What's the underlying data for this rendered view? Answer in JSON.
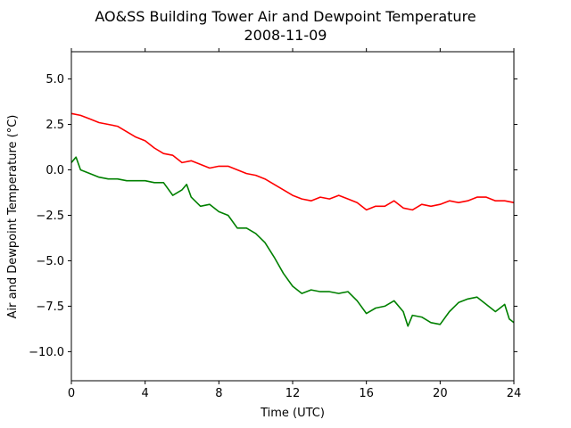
{
  "chart_data": {
    "type": "line",
    "title": "AO&SS Building Tower Air and Dewpoint Temperature",
    "subtitle": "2008-11-09",
    "xlabel": "Time (UTC)",
    "ylabel": "Air and Dewpoint Temperature (°C)",
    "xlim": [
      0,
      24
    ],
    "ylim": [
      -11.6,
      6.5
    ],
    "x_ticks": [
      0,
      4,
      8,
      12,
      16,
      20,
      24
    ],
    "x_tick_labels": [
      "0",
      "4",
      "8",
      "12",
      "16",
      "20",
      "24"
    ],
    "y_ticks": [
      5.0,
      2.5,
      0.0,
      -2.5,
      -5.0,
      -7.5,
      -10.0
    ],
    "y_tick_labels": [
      "5.0",
      "2.5",
      "0.0",
      "−2.5",
      "−5.0",
      "−7.5",
      "−10.0"
    ],
    "grid": false,
    "series": [
      {
        "color": "#ff0000",
        "x": [
          0,
          0.5,
          1,
          1.5,
          2,
          2.5,
          3,
          3.5,
          4,
          4.5,
          5,
          5.5,
          6,
          6.5,
          7,
          7.5,
          8,
          8.5,
          9,
          9.5,
          10,
          10.5,
          11,
          11.5,
          12,
          12.5,
          13,
          13.5,
          14,
          14.5,
          15,
          15.5,
          16,
          16.5,
          17,
          17.5,
          18,
          18.5,
          19,
          19.5,
          20,
          20.5,
          21,
          21.5,
          22,
          22.5,
          23,
          23.5,
          24
        ],
        "values": [
          3.1,
          3.0,
          2.8,
          2.6,
          2.5,
          2.4,
          2.1,
          1.8,
          1.6,
          1.2,
          0.9,
          0.8,
          0.4,
          0.5,
          0.3,
          0.1,
          0.2,
          0.2,
          0.0,
          -0.2,
          -0.3,
          -0.5,
          -0.8,
          -1.1,
          -1.4,
          -1.6,
          -1.7,
          -1.5,
          -1.6,
          -1.4,
          -1.6,
          -1.8,
          -2.2,
          -2.0,
          -2.0,
          -1.7,
          -2.1,
          -2.2,
          -1.9,
          -2.0,
          -1.9,
          -1.7,
          -1.8,
          -1.7,
          -1.5,
          -1.5,
          -1.7,
          -1.7,
          -1.8
        ]
      },
      {
        "color": "#008000",
        "x": [
          0,
          0.25,
          0.5,
          1,
          1.5,
          2,
          2.5,
          3,
          3.5,
          4,
          4.5,
          5,
          5.5,
          6,
          6.25,
          6.5,
          7,
          7.5,
          8,
          8.5,
          9,
          9.5,
          10,
          10.5,
          11,
          11.5,
          12,
          12.5,
          13,
          13.5,
          14,
          14.5,
          15,
          15.5,
          16,
          16.5,
          17,
          17.5,
          18,
          18.25,
          18.5,
          19,
          19.5,
          20,
          20.5,
          21,
          21.5,
          22,
          22.5,
          23,
          23.5,
          23.75,
          24
        ],
        "values": [
          0.4,
          0.7,
          0.0,
          -0.2,
          -0.4,
          -0.5,
          -0.5,
          -0.6,
          -0.6,
          -0.6,
          -0.7,
          -0.7,
          -1.4,
          -1.1,
          -0.8,
          -1.5,
          -2.0,
          -1.9,
          -2.3,
          -2.5,
          -3.2,
          -3.2,
          -3.5,
          -4.0,
          -4.8,
          -5.7,
          -6.4,
          -6.8,
          -6.6,
          -6.7,
          -6.7,
          -6.8,
          -6.7,
          -7.2,
          -7.9,
          -7.6,
          -7.5,
          -7.2,
          -7.8,
          -8.6,
          -8.0,
          -8.1,
          -8.4,
          -8.5,
          -7.8,
          -7.3,
          -7.1,
          -7.0,
          -7.4,
          -7.8,
          -7.4,
          -8.2,
          -8.4
        ]
      }
    ]
  }
}
